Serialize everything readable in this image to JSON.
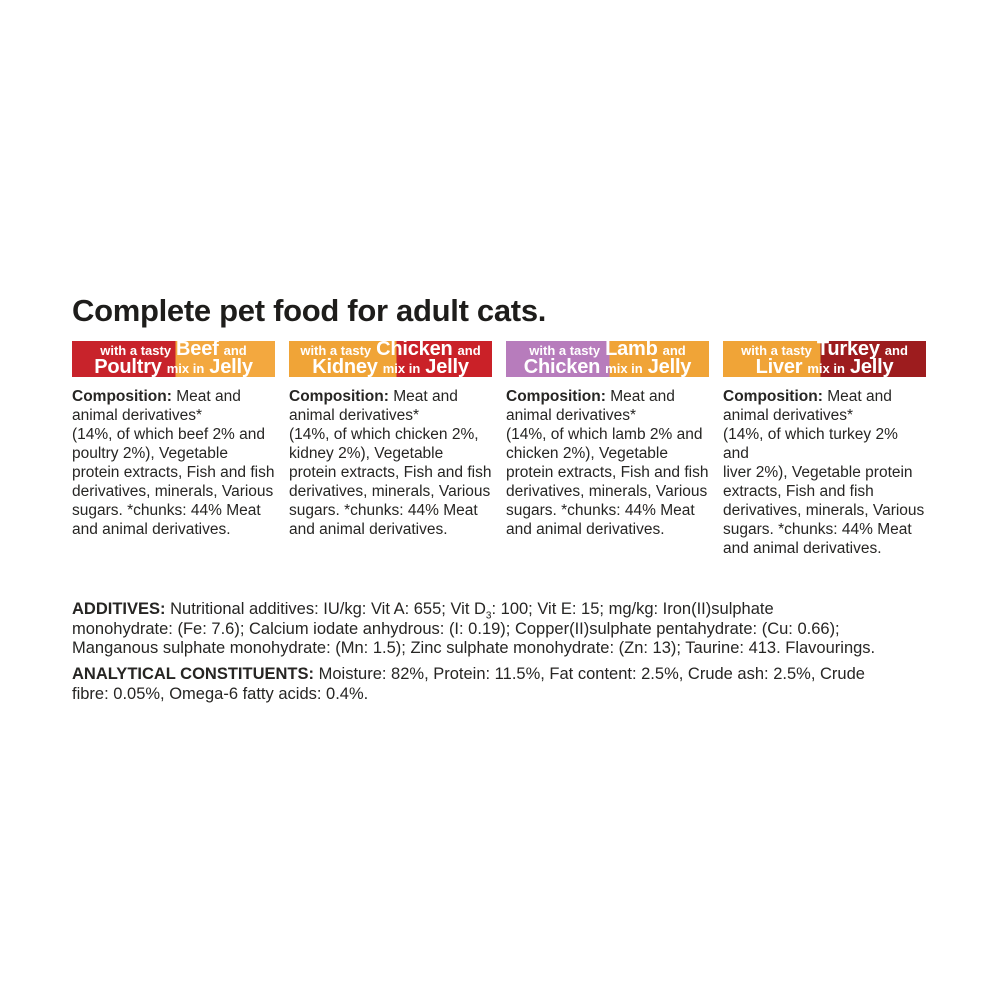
{
  "page": {
    "title": "Complete pet food for adult cats."
  },
  "colors": {
    "red": "#c8232b",
    "orange": "#f0a437",
    "purple": "#b77cbc",
    "dark_red": "#9d1c1e",
    "body_text": "#262523",
    "title_text": "#1e1d1b",
    "banner_text": "#ffffff"
  },
  "varieties": [
    {
      "banner": {
        "prefix": "with a tasty",
        "line1_big": "Beef",
        "line1_small_end": "and",
        "line2_big1": "Poultry",
        "line2_small": "mix in",
        "line2_big2": "Jelly",
        "left_color": "#c8232b",
        "right_color": "#f3a83f",
        "split": "51%"
      },
      "composition_label": "Composition:",
      "composition_text": "Meat and\nanimal derivatives*\n(14%, of which beef 2% and\npoultry 2%), Vegetable\nprotein extracts, Fish and fish\nderivatives, minerals, Various\nsugars. *chunks: 44% Meat\nand animal derivatives."
    },
    {
      "banner": {
        "prefix": "with a tasty",
        "line1_big": "Chicken",
        "line1_small_end": "and",
        "line2_big1": "Kidney",
        "line2_small": "mix in",
        "line2_big2": "Jelly",
        "left_color": "#f0a437",
        "right_color": "#ca2128",
        "split": "53%"
      },
      "composition_label": "Composition:",
      "composition_text": "Meat and\nanimal derivatives*\n(14%, of which chicken 2%,\nkidney 2%), Vegetable\nprotein extracts, Fish and fish\nderivatives, minerals, Various\nsugars. *chunks: 44% Meat\nand animal derivatives."
    },
    {
      "banner": {
        "prefix": "with a tasty",
        "line1_big": "Lamb",
        "line1_small_end": "and",
        "line2_big1": "Chicken",
        "line2_small": "mix in",
        "line2_big2": "Jelly",
        "left_color": "#b77cbc",
        "right_color": "#f0a437",
        "split": "51%"
      },
      "composition_label": "Composition:",
      "composition_text": "Meat and\nanimal derivatives*\n(14%, of which lamb 2% and\nchicken 2%), Vegetable\nprotein extracts, Fish and fish\nderivatives, minerals, Various\nsugars. *chunks: 44% Meat\nand animal derivatives."
    },
    {
      "banner": {
        "prefix": "with a tasty",
        "line1_big": "Turkey",
        "line1_small_end": "and",
        "line2_big1": "Liver",
        "line2_small": "mix in",
        "line2_big2": "Jelly",
        "left_color": "#f0a437",
        "right_color": "#9d1c1e",
        "split": "48%"
      },
      "composition_label": "Composition:",
      "composition_text": "Meat and\nanimal derivatives*\n(14%, of which turkey 2% and\nliver 2%), Vegetable protein\nextracts, Fish and fish\nderivatives, minerals, Various\nsugars. *chunks: 44% Meat\nand animal derivatives."
    }
  ],
  "additives": {
    "label": "ADDITIVES:",
    "segment1": "Nutritional additives: IU/kg: Vit A: 655; Vit D",
    "subscript": "3",
    "segment2": ": 100; Vit E: 15; mg/kg: Iron(II)sulphate\nmonohydrate: (Fe: 7.6); Calcium iodate anhydrous: (I: 0.19); Copper(II)sulphate pentahydrate: (Cu: 0.66);\nManganous sulphate monohydrate: (Mn: 1.5); Zinc sulphate monohydrate: (Zn: 13); Taurine: 413. Flavourings."
  },
  "analytical": {
    "label": "ANALYTICAL CONSTITUENTS:",
    "text": "Moisture: 82%, Protein: 11.5%, Fat content: 2.5%, Crude ash: 2.5%, Crude\nfibre: 0.05%, Omega-6 fatty acids: 0.4%."
  }
}
